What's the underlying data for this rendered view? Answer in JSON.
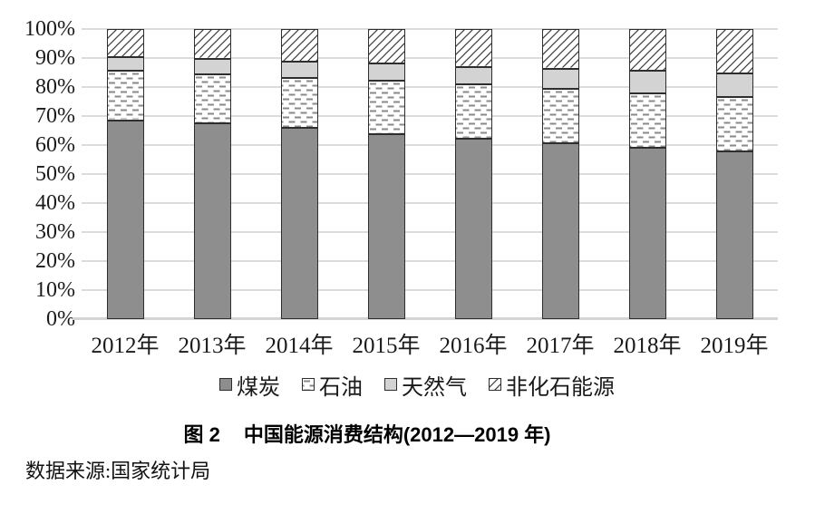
{
  "figure": {
    "caption_label": "图 2",
    "caption_title": "中国能源消费结构(2012—2019 年)",
    "source": "数据来源:国家统计局"
  },
  "chart_data": {
    "type": "bar",
    "stacked": true,
    "title": "中国能源消费结构(2012—2019年)",
    "categories": [
      "2012年",
      "2013年",
      "2014年",
      "2015年",
      "2016年",
      "2017年",
      "2018年",
      "2019年"
    ],
    "series": [
      {
        "key": "coal",
        "name": "煤炭",
        "fill": "solid",
        "color": "#8e8e8e",
        "values": [
          68.5,
          67.4,
          65.8,
          63.8,
          62.2,
          60.6,
          59.0,
          57.7
        ]
      },
      {
        "key": "oil",
        "name": "石油",
        "fill": "dash-pattern",
        "color": "#ffffff",
        "values": [
          17.0,
          17.1,
          17.3,
          18.4,
          18.7,
          18.9,
          18.9,
          19.0
        ]
      },
      {
        "key": "gas",
        "name": "天然气",
        "fill": "solid",
        "color": "#d3d3d3",
        "values": [
          4.8,
          5.3,
          5.6,
          5.8,
          6.1,
          6.9,
          7.6,
          8.0
        ]
      },
      {
        "key": "nonfossil",
        "name": "非化石能源",
        "fill": "diagonal-hatch",
        "color": "#ffffff",
        "values": [
          9.7,
          10.2,
          11.3,
          12.0,
          13.0,
          13.6,
          14.5,
          15.3
        ]
      }
    ],
    "unit": "percent",
    "ylim": [
      0,
      100
    ],
    "y_tick_step": 10,
    "y_tick_suffix": "%",
    "grid": true,
    "legend_position": "bottom",
    "pattern_colors": {
      "dash": "#8a8a8a",
      "hatch": "#3a3a3a",
      "segment_border": "#2e2e2e",
      "gridline": "#dcdcdc"
    }
  }
}
